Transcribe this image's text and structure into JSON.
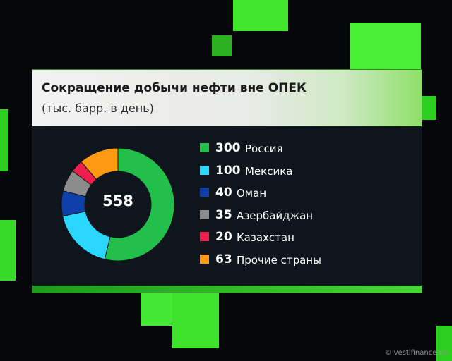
{
  "title": "Сокращение добычи нефти вне ОПЕК",
  "subtitle": "(тыс. барр. в день)",
  "watermark": "© vestifinance.ru",
  "chart_data": {
    "type": "pie",
    "donut": true,
    "total": "558",
    "title": "Сокращение добычи нефти вне ОПЕК",
    "subtitle": "(тыс. барр. в день)",
    "legend_position": "right",
    "series": [
      {
        "value": 300,
        "label": "300",
        "name": "Россия",
        "color": "#22c04a"
      },
      {
        "value": 100,
        "label": "100",
        "name": "Мексика",
        "color": "#2ad8ff"
      },
      {
        "value": 40,
        "label": "40",
        "name": "Оман",
        "color": "#0f3fa8"
      },
      {
        "value": 35,
        "label": "35",
        "name": "Азербайджан",
        "color": "#8c8c8c"
      },
      {
        "value": 20,
        "label": "20",
        "name": "Казахстан",
        "color": "#f01e4c"
      },
      {
        "value": 63,
        "label": "63",
        "name": "Прочие страны",
        "color": "#ff9a12"
      }
    ]
  }
}
